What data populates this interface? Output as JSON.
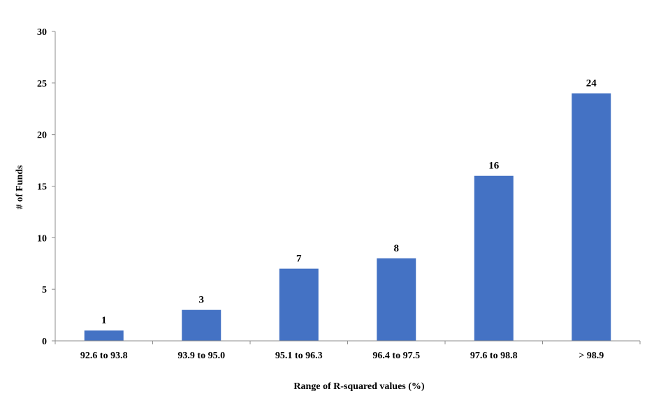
{
  "chart_data": {
    "type": "bar",
    "categories": [
      "92.6 to 93.8",
      "93.9 to 95.0",
      "95.1 to 96.3",
      "96.4 to 97.5",
      "97.6 to 98.8",
      "> 98.9"
    ],
    "values": [
      1,
      3,
      7,
      8,
      16,
      24
    ],
    "data_labels": [
      "1",
      "3",
      "7",
      "8",
      "16",
      "24"
    ],
    "xlabel": "Range of R-squared values (%)",
    "ylabel": "# of Funds",
    "ylim": [
      0,
      30
    ],
    "yticks": [
      0,
      5,
      10,
      15,
      20,
      25,
      30
    ],
    "grid": false,
    "legend": "none",
    "bar_color": "#4472C4"
  }
}
